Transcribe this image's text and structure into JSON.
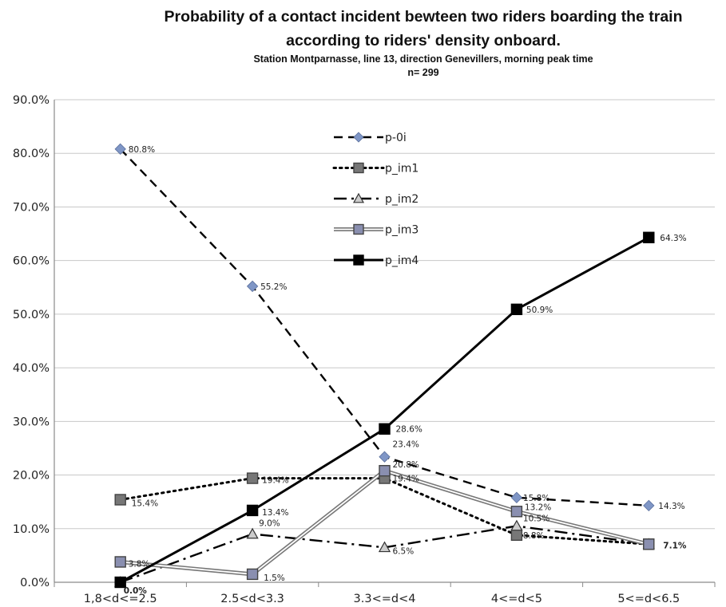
{
  "chart_data": {
    "type": "line",
    "title": "Probability of a contact incident bewteen two riders boarding the train according to riders' density onboard.",
    "subtitle": "Station Montparnasse, line 13, direction Genevillers, morning peak time",
    "sample": "n= 299",
    "xlabel": "",
    "ylabel": "",
    "categories": [
      "1,8<d<=2.5",
      "2.5<d<3.3",
      "3.3<=d<4",
      "4<=d<5",
      "5<=d<6.5"
    ],
    "ylim": [
      0,
      90
    ],
    "yticks": [
      "0.0%",
      "10.0%",
      "20.0%",
      "30.0%",
      "40.0%",
      "50.0%",
      "60.0%",
      "70.0%",
      "80.0%",
      "90.0%"
    ],
    "grid": true,
    "legend_position": "top-center",
    "series": [
      {
        "name": "p-0i",
        "values": [
          80.8,
          55.2,
          23.4,
          15.8,
          14.3
        ],
        "labels": [
          "80.8%",
          "55.2%",
          "23.4%",
          "15.8%",
          "14.3%"
        ],
        "color": "#000000",
        "dash": "dashed",
        "marker": "diamond",
        "marker_color": "#7f96c6"
      },
      {
        "name": "p_im1",
        "values": [
          15.4,
          19.4,
          19.4,
          8.8,
          7.1
        ],
        "labels": [
          "15.4%",
          "19.4%",
          "19.4%",
          "8.8%",
          ""
        ],
        "color": "#000000",
        "dash": "dotted",
        "marker": "square",
        "marker_color": "#777777"
      },
      {
        "name": "p_im2",
        "values": [
          0.0,
          9.0,
          6.5,
          10.5,
          7.1
        ],
        "labels": [
          "",
          "9.0%",
          "6.5%",
          "10.5%",
          ""
        ],
        "color": "#000000",
        "dash": "dashdot",
        "marker": "triangle",
        "marker_color": "#cccccc"
      },
      {
        "name": "p_im3",
        "values": [
          3.8,
          1.5,
          20.8,
          13.2,
          7.1
        ],
        "labels": [
          "3.8%",
          "1.5%",
          "20.8%",
          "13.2%",
          ""
        ],
        "color": "#888888",
        "dash": "double",
        "marker": "square",
        "marker_color": "#8a8fb0"
      },
      {
        "name": "p_im4",
        "values": [
          0.0,
          13.4,
          28.6,
          50.9,
          64.3
        ],
        "labels": [
          "0.0%",
          "13.4%",
          "28.6%",
          "50.9%",
          "64.3%"
        ],
        "color": "#000000",
        "dash": "solid",
        "marker": "square",
        "marker_color": "#000000"
      }
    ],
    "extra_labels": [
      {
        "category_index": 4,
        "value": 7.1,
        "text": "7.1%"
      }
    ]
  }
}
